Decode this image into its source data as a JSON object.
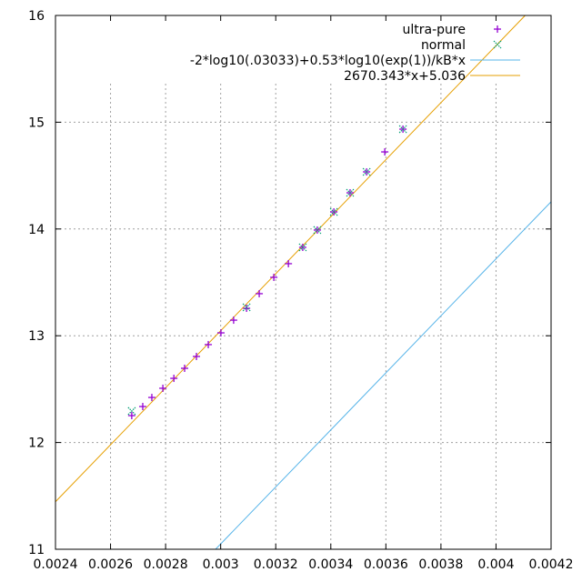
{
  "chart_data": {
    "type": "scatter",
    "title": "",
    "xlabel": "",
    "ylabel": "",
    "xlim": [
      0.0024,
      0.0042
    ],
    "ylim": [
      11,
      16
    ],
    "grid": true,
    "legend_position": "top-right",
    "x_ticks": [
      "0.0024",
      "0.0026",
      "0.0028",
      "0.003",
      "0.0032",
      "0.0034",
      "0.0036",
      "0.0038",
      "0.004",
      "0.0042"
    ],
    "x_tick_values": [
      0.0024,
      0.0026,
      0.0028,
      0.003,
      0.0032,
      0.0034,
      0.0036,
      0.0038,
      0.004,
      0.0042
    ],
    "y_ticks": [
      "11",
      "12",
      "13",
      "14",
      "15",
      "16"
    ],
    "y_tick_values": [
      11,
      12,
      13,
      14,
      15,
      16
    ],
    "series": [
      {
        "name": "ultra-pure",
        "kind": "points",
        "marker": "plus",
        "color": "#9400d3",
        "x": [
          0.002677,
          0.002717,
          0.00275,
          0.00279,
          0.00283,
          0.002869,
          0.002912,
          0.002955,
          0.003001,
          0.003047,
          0.003094,
          0.00314,
          0.003193,
          0.003246,
          0.003298,
          0.003351,
          0.003411,
          0.00347,
          0.00353,
          0.003596,
          0.003662
        ],
        "y": [
          12.252,
          12.337,
          12.422,
          12.508,
          12.601,
          12.695,
          12.806,
          12.917,
          13.027,
          13.146,
          13.257,
          13.394,
          13.547,
          13.675,
          13.828,
          13.99,
          14.16,
          14.339,
          14.535,
          14.722,
          14.935
        ]
      },
      {
        "name": "normal",
        "kind": "points",
        "marker": "cross",
        "color": "#009e73",
        "x": [
          0.002677,
          0.003094,
          0.003298,
          0.003351,
          0.003411,
          0.00347,
          0.00353,
          0.003662
        ],
        "y": [
          12.295,
          13.266,
          13.828,
          13.99,
          14.16,
          14.339,
          14.535,
          14.935
        ]
      },
      {
        "name": "-2*log10(.03033)+0.53*log10(exp(1))/kB*x",
        "kind": "line",
        "color": "#56b4e9",
        "slope": 2671.2,
        "intercept": 3.036
      },
      {
        "name": "2670.343*x+5.036",
        "kind": "line",
        "color": "#e69f00",
        "slope": 2670.343,
        "intercept": 5.036
      }
    ]
  }
}
